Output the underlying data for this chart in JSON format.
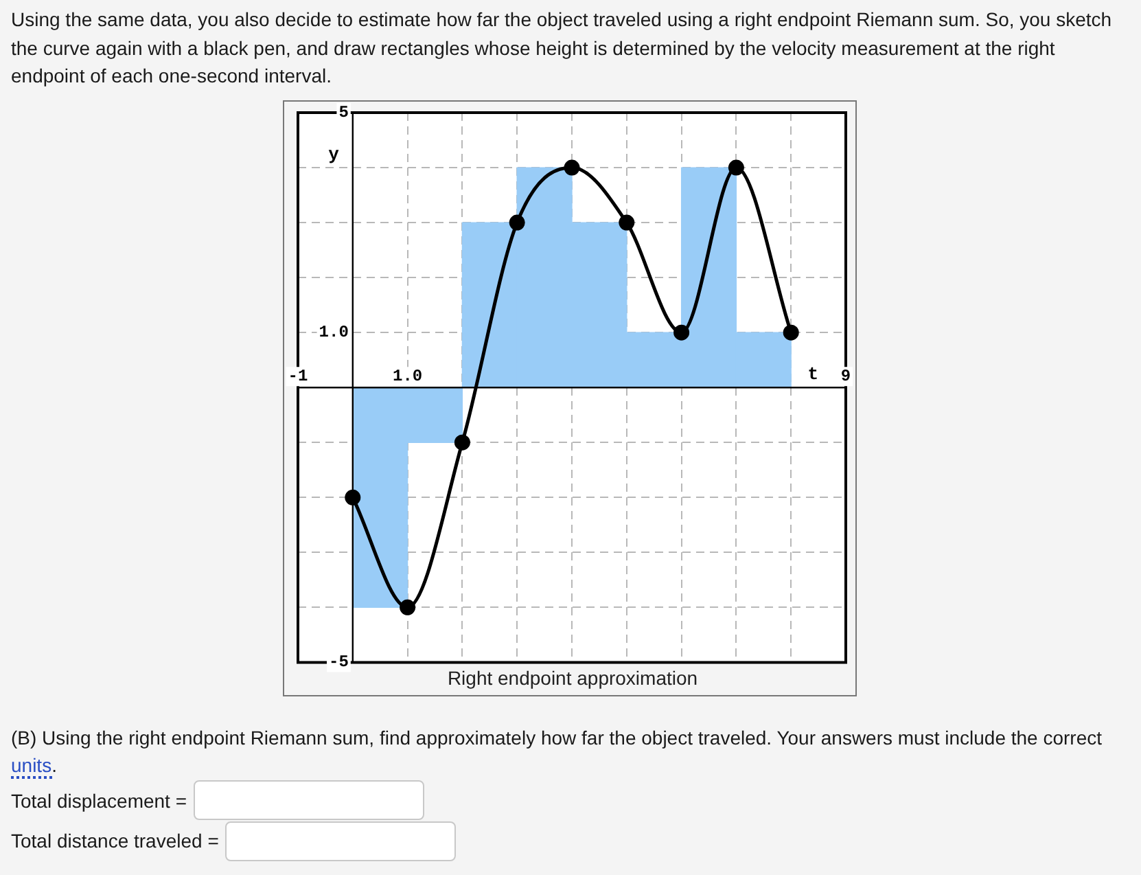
{
  "chart_data": {
    "type": "bar",
    "title": "Right endpoint approximation",
    "xlabel": "t",
    "ylabel": "y",
    "xlim": [
      -1,
      9
    ],
    "ylim": [
      -5,
      5
    ],
    "xticks": [
      {
        "value": -1,
        "label": "-1"
      },
      {
        "value": 0,
        "label": null
      },
      {
        "value": 1,
        "label": "1.0"
      },
      {
        "value": 2,
        "label": null
      },
      {
        "value": 3,
        "label": null
      },
      {
        "value": 4,
        "label": null
      },
      {
        "value": 5,
        "label": null
      },
      {
        "value": 6,
        "label": null
      },
      {
        "value": 7,
        "label": null
      },
      {
        "value": 8,
        "label": null
      },
      {
        "value": 9,
        "label": "9"
      }
    ],
    "yticks": [
      {
        "value": -5,
        "label": "-5"
      },
      {
        "value": -4,
        "label": null
      },
      {
        "value": -3,
        "label": null
      },
      {
        "value": -2,
        "label": null
      },
      {
        "value": -1,
        "label": null
      },
      {
        "value": 0,
        "label": null
      },
      {
        "value": 1,
        "label": "1.0"
      },
      {
        "value": 2,
        "label": null
      },
      {
        "value": 3,
        "label": null
      },
      {
        "value": 4,
        "label": null
      },
      {
        "value": 5,
        "label": "5"
      }
    ],
    "grid": true,
    "series": [
      {
        "x": [
          0.5,
          1.5,
          2.5,
          3.5,
          4.5,
          5.5,
          6.5,
          7.5
        ],
        "values": [
          -4,
          -1,
          3,
          4,
          3,
          1,
          4,
          1
        ],
        "color": "#99ccf7"
      },
      {
        "type": "line",
        "x": [
          0,
          1,
          2,
          3,
          4,
          5,
          6,
          7,
          8
        ],
        "values": [
          -2,
          -4,
          -1,
          3,
          4,
          3,
          1,
          4,
          1
        ],
        "color": "#000000",
        "marker": "circle"
      }
    ],
    "annotations": [
      "Using the same data, you also decide to estimate how far the object traveled using a right endpoint Riemann sum. So, you sketch the curve again with a black pen, and draw rectangles whose height is determined by the velocity measurement at the right endpoint of each one-second interval.",
      "(B) Using the right endpoint Riemann sum, find approximately how far the object traveled. Your answers must include the correct units.",
      "Total displacement =",
      "Total distance traveled ="
    ]
  }
}
